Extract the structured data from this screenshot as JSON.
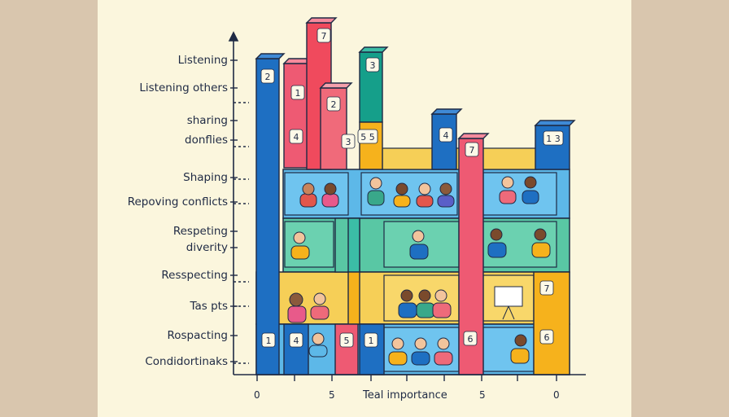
{
  "chart_data": {
    "type": "bar",
    "xlabel": "Teal importance",
    "x_ticks": [
      "0",
      "5",
      "5",
      "0"
    ],
    "y_labels": [
      "Listening",
      "Listening others",
      "sharing",
      "donflies",
      "Shaping",
      "Repoving conflicts",
      "Respeting",
      "diverity",
      "Resspecting",
      "Tas pts",
      "Rospacting",
      "Condidortinaks"
    ],
    "bands": [
      {
        "name": "upper",
        "color": "#5db8e8"
      },
      {
        "name": "middle",
        "color": "#59c7a4"
      },
      {
        "name": "lower",
        "color": "#f6cf57"
      },
      {
        "name": "bottom",
        "color": "#5db8e8"
      }
    ],
    "ylim": [
      0,
      14
    ],
    "series": [
      {
        "name": "blue",
        "color": "#1e6fc2",
        "bars": [
          {
            "x": 0,
            "value": 13.1,
            "label": "2"
          },
          {
            "x": 6.2,
            "value": 10.4,
            "label": "4"
          },
          {
            "x": 10.4,
            "value": 10.0,
            "label": "1 3"
          }
        ]
      },
      {
        "name": "pink",
        "color": "#ee5a73",
        "bars": [
          {
            "x": 1.0,
            "value": 11.6,
            "label": "1"
          },
          {
            "x": 7.3,
            "value": 9.5,
            "label": "7"
          }
        ]
      },
      {
        "name": "red",
        "color": "#f04a5d",
        "bars": [
          {
            "x": 1.9,
            "value": 14.3,
            "label": "7"
          },
          {
            "x": 2.3,
            "value": 11.7,
            "label": "2"
          }
        ]
      },
      {
        "name": "teal",
        "color": "#159f8a",
        "bars": [
          {
            "x": 4.2,
            "value": 13.5,
            "label": "3"
          }
        ]
      },
      {
        "name": "orange",
        "color": "#f6b21c",
        "bars": [
          {
            "x": 4.1,
            "value": 10.1,
            "label": "5 5"
          }
        ]
      }
    ],
    "bar_labels": [
      {
        "bar": "blue",
        "text": "2"
      },
      {
        "bar": "pink",
        "text": "1"
      },
      {
        "bar": "pink",
        "text": "4"
      },
      {
        "bar": "red-tall",
        "text": "7"
      },
      {
        "bar": "red-mid",
        "text": "2"
      },
      {
        "bar": "red-mid",
        "text": "3"
      },
      {
        "bar": "teal",
        "text": "3"
      },
      {
        "bar": "orange",
        "text": "5 5"
      },
      {
        "bar": "blue-right",
        "text": "4"
      },
      {
        "bar": "pink-right",
        "text": "7"
      },
      {
        "bar": "blue-far",
        "text": "1 3"
      },
      {
        "bar": "yellow-right",
        "text": "7"
      },
      {
        "bar": "bottom-1",
        "text": "1"
      },
      {
        "bar": "bottom-4",
        "text": "4"
      },
      {
        "bar": "bottom-5",
        "text": "5"
      },
      {
        "bar": "bottom-1b",
        "text": "1"
      },
      {
        "bar": "bottom-6",
        "text": "6"
      },
      {
        "bar": "bottom-6b",
        "text": "6"
      }
    ]
  }
}
